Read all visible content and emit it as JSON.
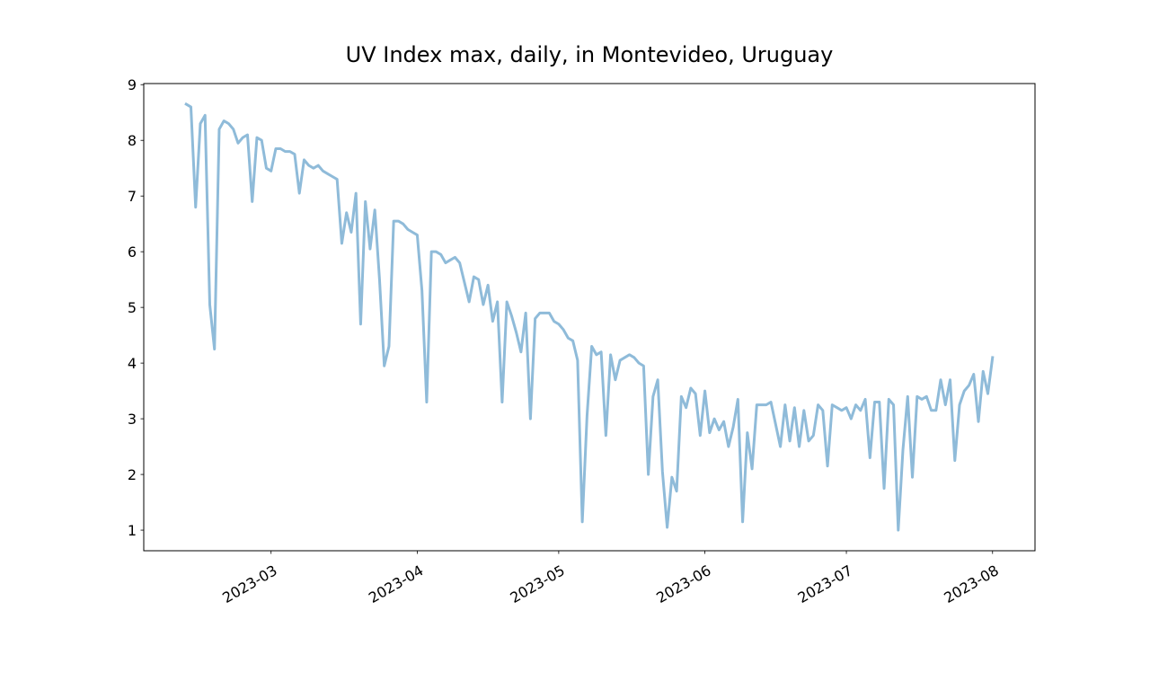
{
  "chart_data": {
    "type": "line",
    "title": "UV Index max, daily, in Montevideo, Uruguay",
    "x": [
      "2023-02-11",
      "2023-02-12",
      "2023-02-13",
      "2023-02-14",
      "2023-02-15",
      "2023-02-16",
      "2023-02-17",
      "2023-02-18",
      "2023-02-19",
      "2023-02-20",
      "2023-02-21",
      "2023-02-22",
      "2023-02-23",
      "2023-02-24",
      "2023-02-25",
      "2023-02-26",
      "2023-02-27",
      "2023-02-28",
      "2023-03-01",
      "2023-03-02",
      "2023-03-03",
      "2023-03-04",
      "2023-03-05",
      "2023-03-06",
      "2023-03-07",
      "2023-03-08",
      "2023-03-09",
      "2023-03-10",
      "2023-03-11",
      "2023-03-12",
      "2023-03-13",
      "2023-03-14",
      "2023-03-15",
      "2023-03-16",
      "2023-03-17",
      "2023-03-18",
      "2023-03-19",
      "2023-03-20",
      "2023-03-21",
      "2023-03-22",
      "2023-03-23",
      "2023-03-24",
      "2023-03-25",
      "2023-03-26",
      "2023-03-27",
      "2023-03-28",
      "2023-03-29",
      "2023-03-30",
      "2023-03-31",
      "2023-04-01",
      "2023-04-02",
      "2023-04-03",
      "2023-04-04",
      "2023-04-05",
      "2023-04-06",
      "2023-04-07",
      "2023-04-08",
      "2023-04-09",
      "2023-04-10",
      "2023-04-11",
      "2023-04-12",
      "2023-04-13",
      "2023-04-14",
      "2023-04-15",
      "2023-04-16",
      "2023-04-17",
      "2023-04-18",
      "2023-04-19",
      "2023-04-20",
      "2023-04-21",
      "2023-04-22",
      "2023-04-23",
      "2023-04-24",
      "2023-04-25",
      "2023-04-26",
      "2023-04-27",
      "2023-04-28",
      "2023-04-29",
      "2023-04-30",
      "2023-05-01",
      "2023-05-02",
      "2023-05-03",
      "2023-05-04",
      "2023-05-05",
      "2023-05-06",
      "2023-05-07",
      "2023-05-08",
      "2023-05-09",
      "2023-05-10",
      "2023-05-11",
      "2023-05-12",
      "2023-05-13",
      "2023-05-14",
      "2023-05-15",
      "2023-05-16",
      "2023-05-17",
      "2023-05-18",
      "2023-05-19",
      "2023-05-20",
      "2023-05-21",
      "2023-05-22",
      "2023-05-23",
      "2023-05-24",
      "2023-05-25",
      "2023-05-26",
      "2023-05-27",
      "2023-05-28",
      "2023-05-29",
      "2023-05-30",
      "2023-05-31",
      "2023-06-01",
      "2023-06-02",
      "2023-06-03",
      "2023-06-04",
      "2023-06-05",
      "2023-06-06",
      "2023-06-07",
      "2023-06-08",
      "2023-06-09",
      "2023-06-10",
      "2023-06-11",
      "2023-06-12",
      "2023-06-13",
      "2023-06-14",
      "2023-06-15",
      "2023-06-16",
      "2023-06-17",
      "2023-06-18",
      "2023-06-19",
      "2023-06-20",
      "2023-06-21",
      "2023-06-22",
      "2023-06-23",
      "2023-06-24",
      "2023-06-25",
      "2023-06-26",
      "2023-06-27",
      "2023-06-28",
      "2023-06-29",
      "2023-06-30",
      "2023-07-01",
      "2023-07-02",
      "2023-07-03",
      "2023-07-04",
      "2023-07-05",
      "2023-07-06",
      "2023-07-07",
      "2023-07-08",
      "2023-07-09",
      "2023-07-10",
      "2023-07-11",
      "2023-07-12",
      "2023-07-13",
      "2023-07-14",
      "2023-07-15",
      "2023-07-16",
      "2023-07-17",
      "2023-07-18",
      "2023-07-19",
      "2023-07-20",
      "2023-07-21",
      "2023-07-22",
      "2023-07-23",
      "2023-07-24",
      "2023-07-25",
      "2023-07-26",
      "2023-07-27",
      "2023-07-28",
      "2023-07-29",
      "2023-07-30",
      "2023-07-31",
      "2023-08-01"
    ],
    "series": [
      {
        "color": "#8fbbd9",
        "values": [
          8.65,
          8.6,
          6.8,
          8.3,
          8.45,
          5.05,
          4.25,
          8.2,
          8.35,
          8.3,
          8.2,
          7.95,
          8.05,
          8.1,
          6.9,
          8.05,
          8.0,
          7.5,
          7.45,
          7.85,
          7.85,
          7.8,
          7.8,
          7.75,
          7.05,
          7.65,
          7.55,
          7.5,
          7.55,
          7.45,
          7.4,
          7.35,
          7.3,
          6.15,
          6.7,
          6.35,
          7.05,
          4.7,
          6.9,
          6.05,
          6.75,
          5.5,
          3.95,
          4.3,
          6.55,
          6.55,
          6.5,
          6.4,
          6.35,
          6.3,
          5.3,
          3.3,
          6.0,
          6.0,
          5.95,
          5.8,
          5.85,
          5.9,
          5.8,
          5.45,
          5.1,
          5.55,
          5.5,
          5.05,
          5.4,
          4.75,
          5.1,
          3.3,
          5.1,
          4.85,
          4.55,
          4.2,
          4.9,
          3.0,
          4.8,
          4.9,
          4.9,
          4.9,
          4.75,
          4.7,
          4.6,
          4.45,
          4.4,
          4.05,
          1.15,
          3.05,
          4.3,
          4.15,
          4.2,
          2.7,
          4.15,
          3.7,
          4.05,
          4.1,
          4.15,
          4.1,
          4.0,
          3.95,
          2.0,
          3.4,
          3.7,
          2.05,
          1.05,
          1.95,
          1.7,
          3.4,
          3.2,
          3.55,
          3.45,
          2.7,
          3.5,
          2.75,
          3.0,
          2.8,
          2.95,
          2.5,
          2.85,
          3.35,
          1.15,
          2.75,
          2.1,
          3.25,
          3.25,
          3.25,
          3.3,
          2.9,
          2.5,
          3.25,
          2.6,
          3.2,
          2.5,
          3.15,
          2.6,
          2.7,
          3.25,
          3.15,
          2.15,
          3.25,
          3.2,
          3.15,
          3.2,
          3.0,
          3.25,
          3.15,
          3.35,
          2.3,
          3.3,
          3.3,
          1.75,
          3.35,
          3.25,
          1.0,
          2.45,
          3.4,
          1.95,
          3.4,
          3.35,
          3.4,
          3.15,
          3.15,
          3.7,
          3.25,
          3.7,
          2.25,
          3.25,
          3.5,
          3.6,
          3.8,
          2.95,
          3.85,
          3.45,
          4.1
        ]
      }
    ],
    "xlim": [
      "2023-02-02",
      "2023-08-10"
    ],
    "xticks": [
      {
        "value": "2023-03-01",
        "label": "2023-03"
      },
      {
        "value": "2023-04-01",
        "label": "2023-04"
      },
      {
        "value": "2023-05-01",
        "label": "2023-05"
      },
      {
        "value": "2023-06-01",
        "label": "2023-06"
      },
      {
        "value": "2023-07-01",
        "label": "2023-07"
      },
      {
        "value": "2023-08-01",
        "label": "2023-08"
      }
    ],
    "ylim": [
      0.63,
      9.02
    ],
    "yticks": [
      1,
      2,
      3,
      4,
      5,
      6,
      7,
      8,
      9
    ],
    "grid": false
  }
}
